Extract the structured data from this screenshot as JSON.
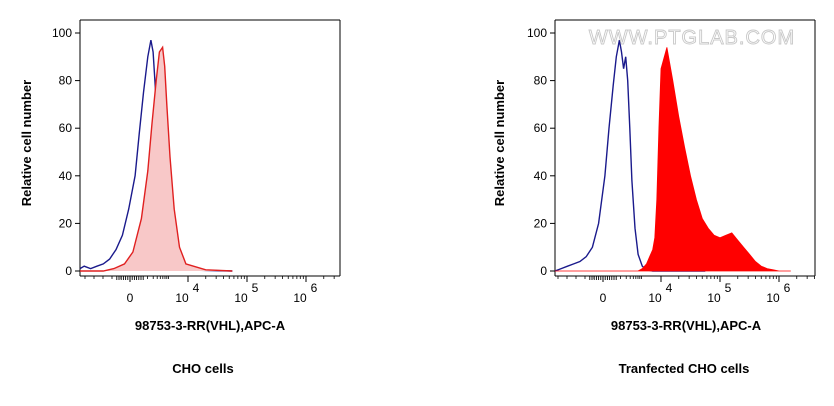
{
  "watermark": "WWW.PTGLAB.COM",
  "colors": {
    "control": "#1a1a8c",
    "stain_line": "#e02020",
    "stain_fill_light": "#f8c8c8",
    "stain_fill_solid": "#ff0000"
  },
  "chart_data": [
    {
      "type": "area",
      "title": "CHO cells",
      "xlabel": "98753-3-RR(VHL),APC-A",
      "ylabel": "Relative cell number",
      "x_scale": "biexponential",
      "ylim": [
        0,
        100
      ],
      "y_ticks": [
        "0",
        "20",
        "40",
        "60",
        "80",
        "100"
      ],
      "x_ticks": [
        {
          "value": 0,
          "label": "0"
        },
        {
          "value": 10000,
          "base": "10",
          "exp": "4"
        },
        {
          "value": 100000,
          "base": "10",
          "exp": "5"
        },
        {
          "value": 1000000,
          "base": "10",
          "exp": "6"
        }
      ],
      "x_range_decades": [
        -1.1,
        4.75
      ],
      "grid": false,
      "series": [
        {
          "role": "control",
          "style": "line",
          "x": [
            -1.1,
            -0.9,
            -0.6,
            -0.3,
            0.0,
            0.3,
            0.6,
            0.9,
            1.2,
            1.5,
            1.7,
            1.9,
            2.1,
            2.25,
            2.35,
            2.45,
            2.6,
            2.75,
            2.95,
            3.2,
            3.6,
            4.75
          ],
          "y": [
            1,
            2,
            1,
            2,
            3,
            5,
            9,
            15,
            26,
            40,
            58,
            75,
            90,
            97,
            92,
            78,
            55,
            30,
            12,
            3,
            0.5,
            0
          ]
        },
        {
          "role": "stained",
          "style": "filled-light",
          "x": [
            -1.1,
            0.0,
            0.5,
            1.0,
            1.4,
            1.8,
            2.1,
            2.3,
            2.5,
            2.65,
            2.8,
            2.9,
            3.0,
            3.15,
            3.35,
            3.6,
            3.9,
            4.3,
            4.75
          ],
          "y": [
            0,
            0,
            1,
            3,
            8,
            22,
            42,
            62,
            80,
            92,
            94,
            86,
            70,
            48,
            26,
            10,
            3,
            0.5,
            0
          ]
        }
      ]
    },
    {
      "type": "area",
      "title": "Tranfected CHO cells",
      "xlabel": "98753-3-RR(VHL),APC-A",
      "ylabel": "Relative cell number",
      "x_scale": "biexponential",
      "ylim": [
        0,
        100
      ],
      "y_ticks": [
        "0",
        "20",
        "40",
        "60",
        "80",
        "100"
      ],
      "x_ticks": [
        {
          "value": 0,
          "label": "0"
        },
        {
          "value": 10000,
          "base": "10",
          "exp": "4"
        },
        {
          "value": 100000,
          "base": "10",
          "exp": "5"
        },
        {
          "value": 1000000,
          "base": "10",
          "exp": "6"
        }
      ],
      "x_range_decades": [
        -1.1,
        4.75
      ],
      "grid": false,
      "series": [
        {
          "role": "control",
          "style": "line",
          "x": [
            -1.1,
            -0.8,
            -0.5,
            -0.2,
            0.1,
            0.4,
            0.7,
            1.0,
            1.3,
            1.5,
            1.7,
            1.85,
            2.0,
            2.1,
            2.2,
            2.3,
            2.4,
            2.5,
            2.6,
            2.75,
            2.9,
            3.1,
            3.3,
            3.6,
            4.75
          ],
          "y": [
            0,
            1,
            2,
            3,
            4,
            6,
            10,
            20,
            40,
            60,
            78,
            90,
            97,
            92,
            85,
            90,
            80,
            60,
            38,
            18,
            7,
            2,
            0.5,
            0,
            0
          ]
        },
        {
          "role": "transfected",
          "style": "filled-solid",
          "x": [
            -1.1,
            1.0,
            2.9,
            3.1,
            3.3,
            3.45,
            3.6,
            3.7,
            3.8,
            3.9,
            4.0,
            4.1,
            4.2,
            4.3,
            4.4,
            4.5,
            4.6,
            4.7,
            4.8,
            4.9,
            5.0,
            5.1,
            5.2,
            5.3,
            5.4,
            5.5,
            5.6,
            5.7,
            5.8,
            5.9,
            6.0,
            6.1,
            6.2
          ],
          "y": [
            0,
            0,
            0,
            1,
            3,
            6,
            9,
            14,
            30,
            60,
            85,
            94,
            80,
            65,
            52,
            40,
            30,
            22,
            18,
            15,
            14,
            15,
            16,
            13,
            10,
            7,
            4,
            2,
            1,
            0.5,
            0,
            0,
            0
          ]
        }
      ]
    }
  ]
}
